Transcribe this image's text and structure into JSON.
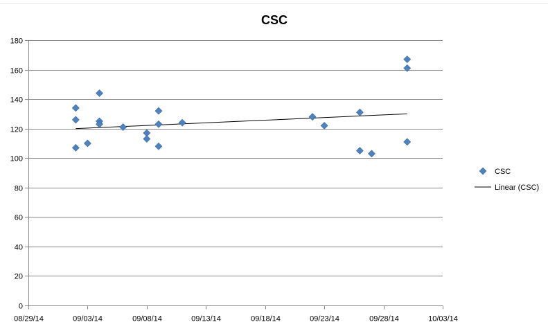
{
  "chart_data": {
    "type": "scatter",
    "title": "CSC",
    "xlabel": "",
    "ylabel": "",
    "xlim": [
      "2014-08-29",
      "2014-10-03"
    ],
    "ylim": [
      0,
      180
    ],
    "x_ticks": [
      "08/29/14",
      "09/03/14",
      "09/08/14",
      "09/13/14",
      "09/18/14",
      "09/23/14",
      "09/28/14",
      "10/03/14"
    ],
    "y_ticks": [
      "0",
      "20",
      "40",
      "60",
      "80",
      "100",
      "120",
      "140",
      "160",
      "180"
    ],
    "grid": "horizontal",
    "legend_position": "right",
    "series": [
      {
        "name": "CSC",
        "marker": "diamond",
        "color": "#4F81BD",
        "points": [
          {
            "x": "2014-09-02",
            "y": 134
          },
          {
            "x": "2014-09-02",
            "y": 126
          },
          {
            "x": "2014-09-02",
            "y": 107
          },
          {
            "x": "2014-09-03",
            "y": 110
          },
          {
            "x": "2014-09-04",
            "y": 144
          },
          {
            "x": "2014-09-04",
            "y": 125
          },
          {
            "x": "2014-09-04",
            "y": 123
          },
          {
            "x": "2014-09-06",
            "y": 121
          },
          {
            "x": "2014-09-08",
            "y": 117
          },
          {
            "x": "2014-09-08",
            "y": 113
          },
          {
            "x": "2014-09-09",
            "y": 132
          },
          {
            "x": "2014-09-09",
            "y": 123
          },
          {
            "x": "2014-09-09",
            "y": 108
          },
          {
            "x": "2014-09-11",
            "y": 124
          },
          {
            "x": "2014-09-22",
            "y": 128
          },
          {
            "x": "2014-09-23",
            "y": 122
          },
          {
            "x": "2014-09-26",
            "y": 131
          },
          {
            "x": "2014-09-26",
            "y": 105
          },
          {
            "x": "2014-09-27",
            "y": 103
          },
          {
            "x": "2014-09-30",
            "y": 167
          },
          {
            "x": "2014-09-30",
            "y": 161
          },
          {
            "x": "2014-09-30",
            "y": 111
          }
        ]
      },
      {
        "name": "Linear (CSC)",
        "kind": "trendline",
        "color": "#000000",
        "points": [
          {
            "x": "2014-09-02",
            "y": 120
          },
          {
            "x": "2014-09-30",
            "y": 130
          }
        ]
      }
    ]
  }
}
